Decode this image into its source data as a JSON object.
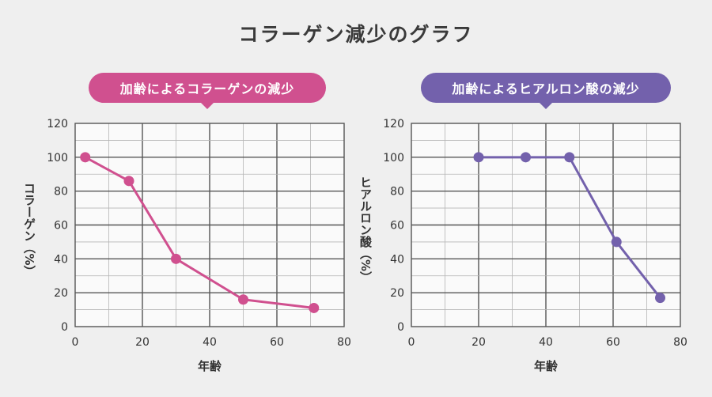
{
  "title": "コラーゲン減少のグラフ",
  "colors": {
    "collagen": "#d0508f",
    "hyaluronic": "#7361ac"
  },
  "chart_data": [
    {
      "type": "line",
      "badge": "加齢によるコラーゲンの減少",
      "xlabel": "年齢",
      "ylabel": "コラーゲン（%）",
      "xlim": [
        0,
        80
      ],
      "ylim": [
        0,
        120
      ],
      "xticks": [
        0,
        20,
        40,
        60,
        80
      ],
      "yticks": [
        0,
        20,
        40,
        60,
        80,
        100,
        120
      ],
      "grid": true,
      "series": [
        {
          "x": [
            3,
            16,
            30,
            50,
            71
          ],
          "y": [
            100,
            86,
            40,
            16,
            11
          ]
        }
      ]
    },
    {
      "type": "line",
      "badge": "加齢によるヒアルロン酸の減少",
      "xlabel": "年齢",
      "ylabel": "ヒアルロン酸（%）",
      "xlim": [
        0,
        80
      ],
      "ylim": [
        0,
        120
      ],
      "xticks": [
        0,
        20,
        40,
        60,
        80
      ],
      "yticks": [
        0,
        20,
        40,
        60,
        80,
        100,
        120
      ],
      "grid": true,
      "series": [
        {
          "x": [
            20,
            34,
            47,
            61,
            74
          ],
          "y": [
            100,
            100,
            100,
            50,
            17
          ]
        }
      ]
    }
  ]
}
